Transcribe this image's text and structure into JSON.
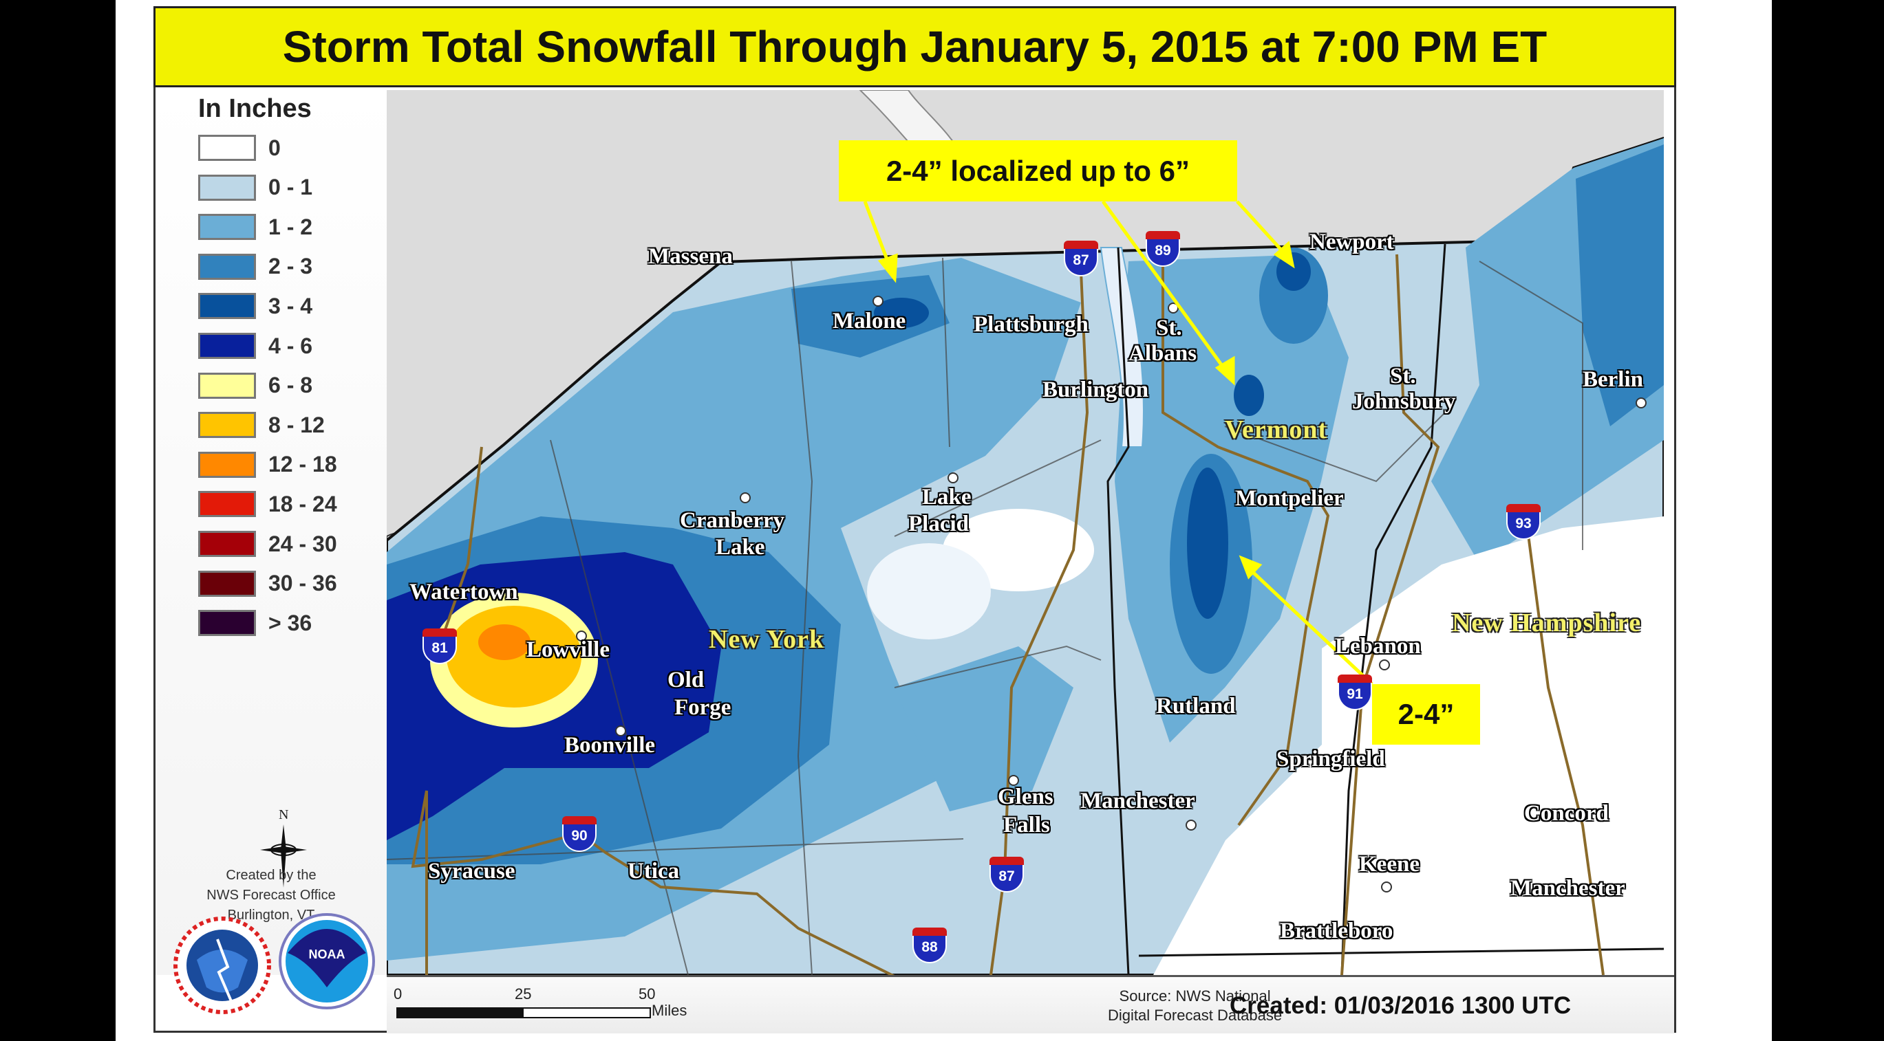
{
  "title": "Storm Total Snowfall Through January 5, 2015 at 7:00 PM ET",
  "legend": {
    "title": "In Inches",
    "items": [
      {
        "label": "0",
        "color": "#ffffff"
      },
      {
        "label": "0 - 1",
        "color": "#bdd7e7"
      },
      {
        "label": "1 - 2",
        "color": "#6baed6"
      },
      {
        "label": "2 - 3",
        "color": "#3182bd"
      },
      {
        "label": "3 - 4",
        "color": "#08519c"
      },
      {
        "label": "4 - 6",
        "color": "#08209c"
      },
      {
        "label": "6 - 8",
        "color": "#ffff99"
      },
      {
        "label": "8 - 12",
        "color": "#ffc400"
      },
      {
        "label": "12 - 18",
        "color": "#ff8800"
      },
      {
        "label": "18 - 24",
        "color": "#e31a08"
      },
      {
        "label": "24 - 30",
        "color": "#a50008"
      },
      {
        "label": "30 - 36",
        "color": "#6a0008"
      },
      {
        "label": "> 36",
        "color": "#2a0030"
      }
    ]
  },
  "compass": {
    "north_label": "N"
  },
  "credits": [
    "Created by the",
    "NWS Forecast Office",
    "Burlington, VT"
  ],
  "logos": {
    "nws": "NATIONAL WEATHER SERVICE",
    "noaa": "NOAA"
  },
  "states": [
    "New York",
    "Vermont",
    "New Hampshire"
  ],
  "cities": [
    "Massena",
    "Malone",
    "Plattsburgh",
    "St.",
    "Albans",
    "Burlington",
    "Newport",
    "St.",
    "Johnsbury",
    "Berlin",
    "Montpelier",
    "Lake",
    "Placid",
    "Cranberry",
    "Lake",
    "Watertown",
    "Lowville",
    "Old",
    "Forge",
    "Boonville",
    "Lebanon",
    "Rutland",
    "Springfield",
    "Glens",
    "Falls",
    "Manchester",
    "Concord",
    "Syracuse",
    "Utica",
    "Keene",
    "Manchester",
    "Brattleboro"
  ],
  "interstates": [
    "87",
    "89",
    "81",
    "90",
    "87",
    "88",
    "91",
    "93"
  ],
  "callouts": [
    "2-4” localized up to 6”",
    "2-4”"
  ],
  "scale": {
    "ticks": [
      "0",
      "25",
      "50"
    ],
    "unit": "Miles"
  },
  "source": [
    "Source: NWS National",
    "Digital Forecast Database"
  ],
  "created": "Created: 01/03/2016 1300 UTC"
}
